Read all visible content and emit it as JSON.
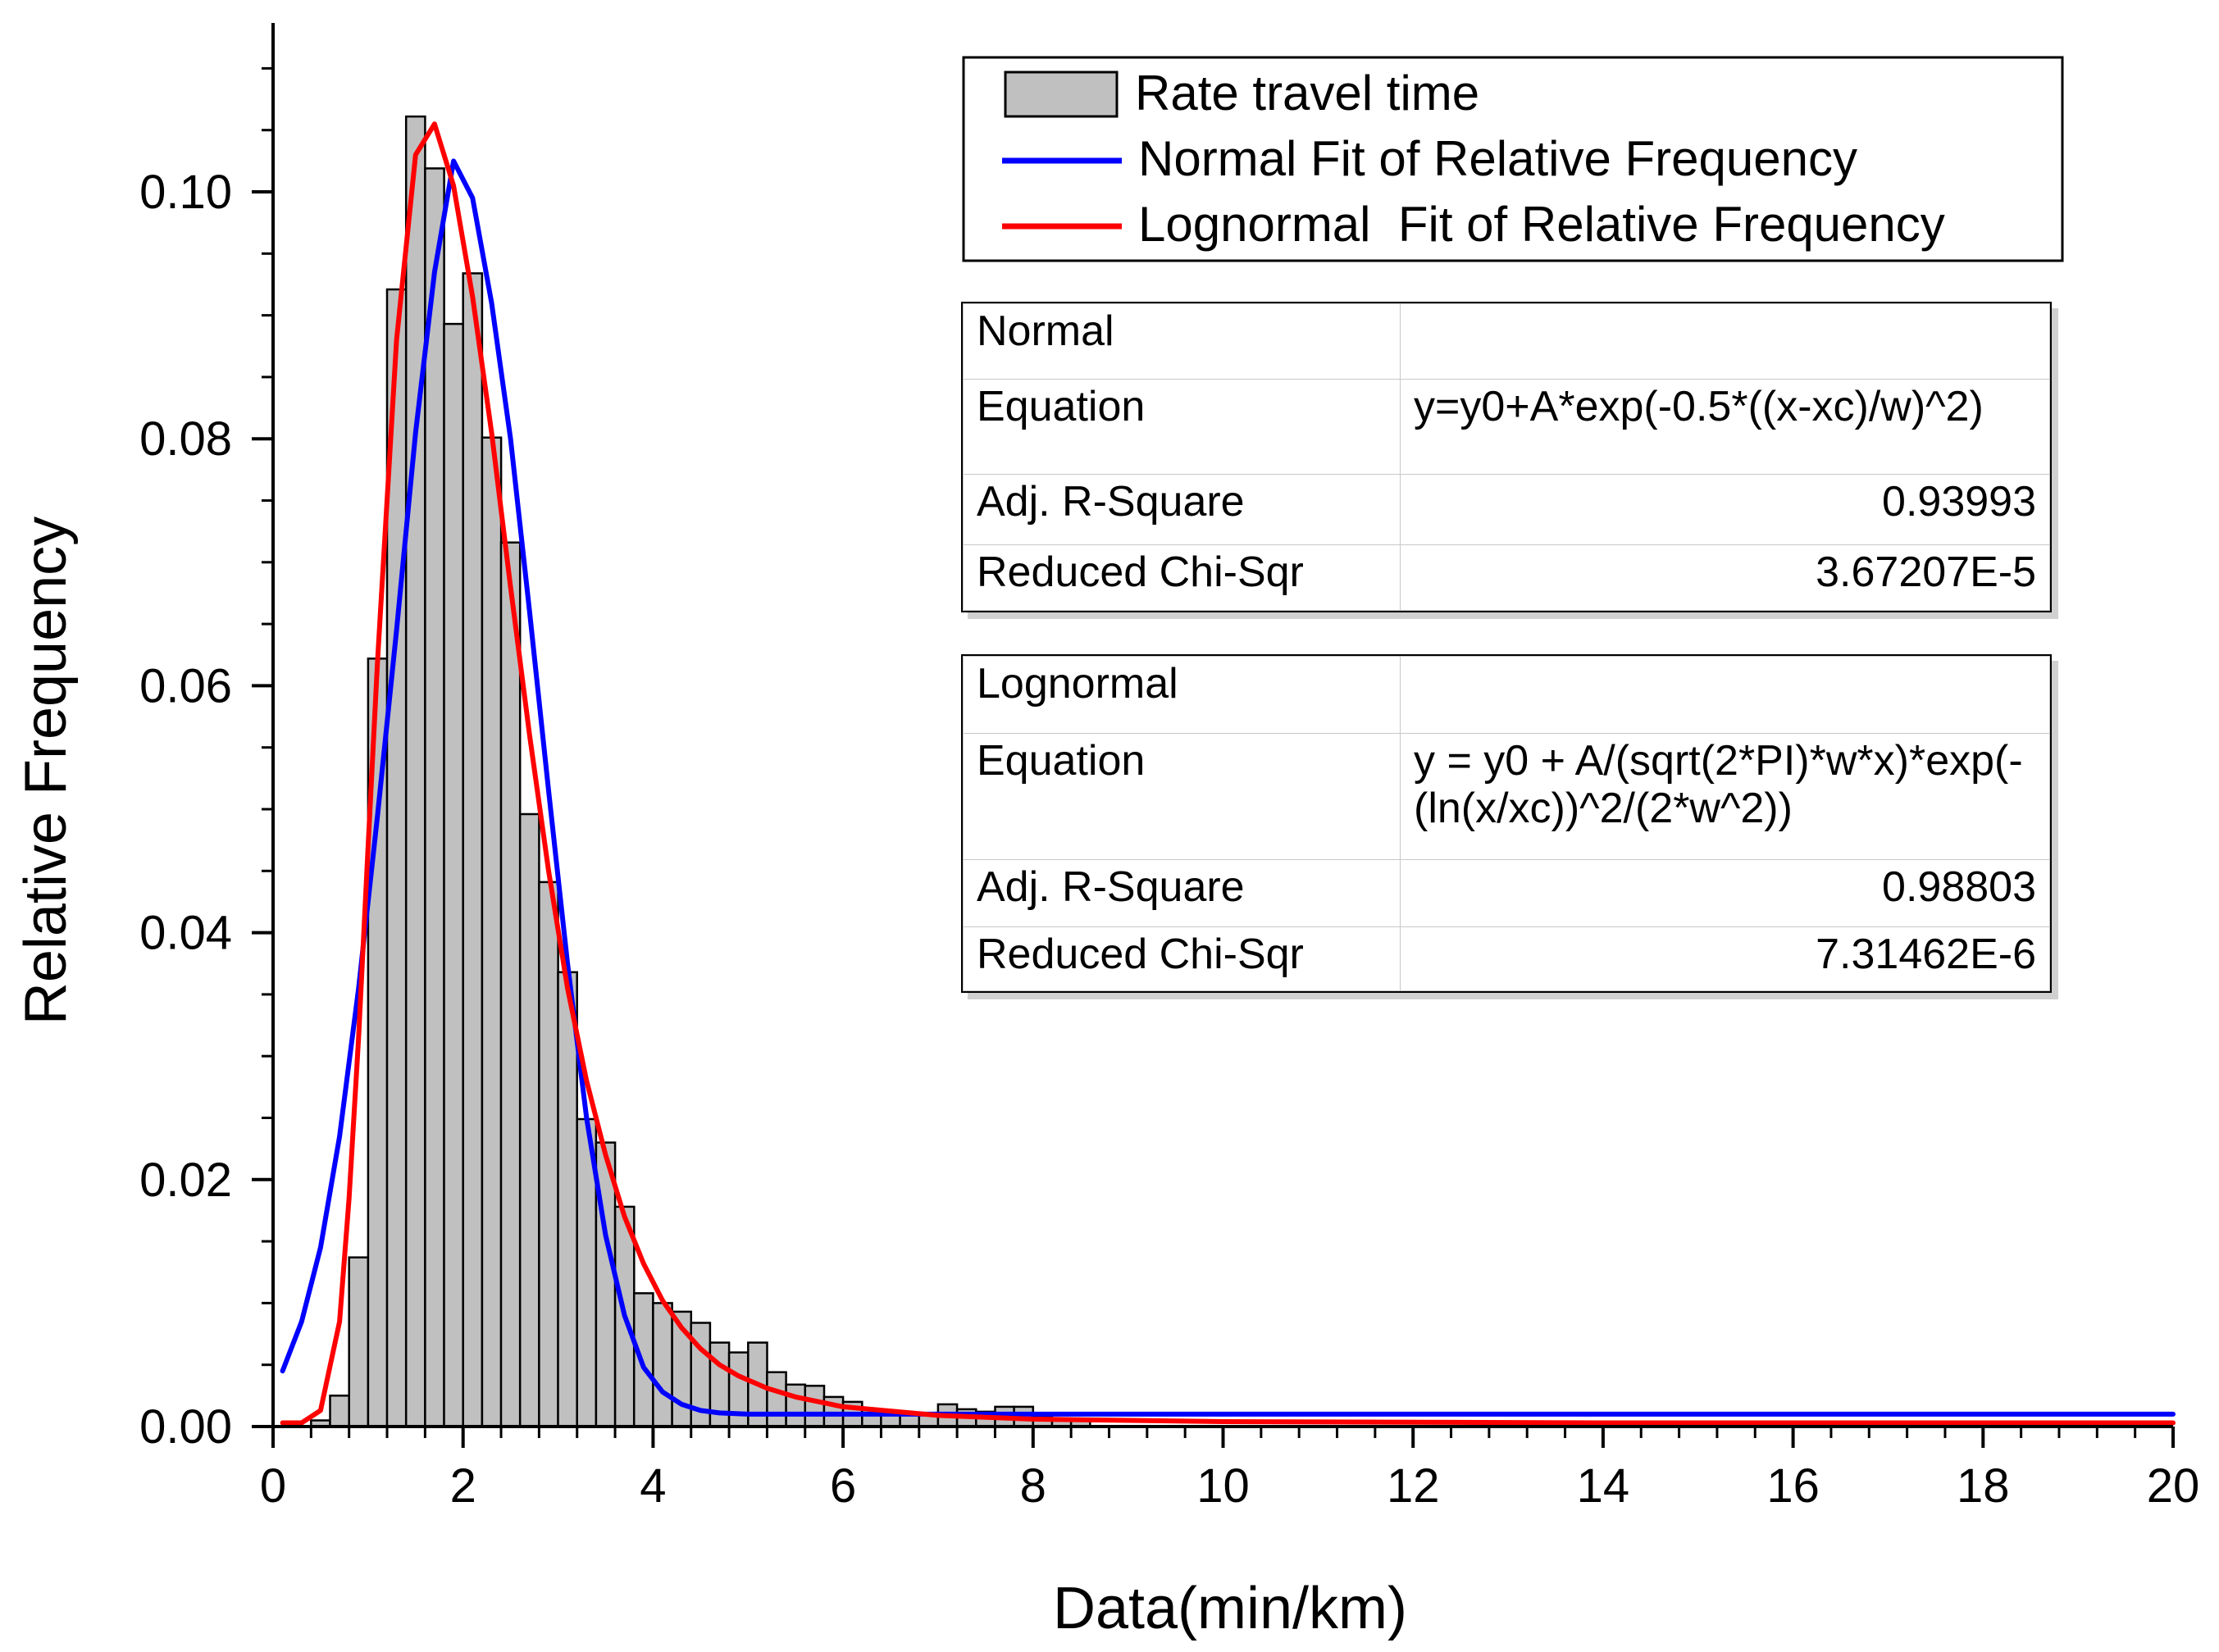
{
  "chart_data": {
    "type": "bar",
    "xlabel": "Data(min/km)",
    "ylabel": "Relative Frequency",
    "xlim": [
      0,
      20
    ],
    "ylim": [
      0,
      0.112
    ],
    "x_ticks": [
      0,
      2,
      4,
      6,
      8,
      10,
      12,
      14,
      16,
      18,
      20
    ],
    "x_tick_labels": [
      "0",
      "2",
      "4",
      "6",
      "8",
      "10",
      "12",
      "14",
      "16",
      "18",
      "20"
    ],
    "y_ticks": [
      0,
      0.02,
      0.04,
      0.06,
      0.08,
      0.1
    ],
    "y_tick_labels": [
      "0.00",
      "0.02",
      "0.04",
      "0.06",
      "0.08",
      "0.10"
    ],
    "bin_width": 0.2,
    "series": [
      {
        "name": "Rate travel time",
        "kind": "histogram",
        "color": "#c0c0c0",
        "x": [
          0.5,
          0.7,
          0.9,
          1.1,
          1.3,
          1.5,
          1.7,
          1.9,
          2.1,
          2.3,
          2.5,
          2.7,
          2.9,
          3.1,
          3.3,
          3.5,
          3.7,
          3.9,
          4.1,
          4.3,
          4.5,
          4.7,
          4.9,
          5.1,
          5.3,
          5.5,
          5.7,
          5.9,
          6.1,
          6.3,
          6.5,
          6.7,
          6.9,
          7.1,
          7.3,
          7.5,
          7.7,
          7.9,
          8.1,
          8.3,
          8.5
        ],
        "values": [
          0.0005,
          0.0025,
          0.0137,
          0.0622,
          0.0921,
          0.1061,
          0.1019,
          0.0893,
          0.0934,
          0.0801,
          0.0716,
          0.0496,
          0.0441,
          0.0368,
          0.0249,
          0.023,
          0.0178,
          0.0108,
          0.01,
          0.0093,
          0.0084,
          0.0068,
          0.006,
          0.0068,
          0.0044,
          0.0034,
          0.0033,
          0.0024,
          0.002,
          0.0014,
          0.0012,
          0.0011,
          0.001,
          0.0018,
          0.0014,
          0.0012,
          0.0016,
          0.0016,
          0.0008,
          0.0006,
          0.0005
        ]
      },
      {
        "name": "Normal Fit of Relative Frequency",
        "kind": "line",
        "color": "#0000ff",
        "x": [
          0.1,
          0.3,
          0.5,
          0.7,
          0.9,
          1.1,
          1.3,
          1.5,
          1.7,
          1.9,
          2.1,
          2.3,
          2.5,
          2.7,
          2.9,
          3.1,
          3.3,
          3.5,
          3.7,
          3.9,
          4.1,
          4.3,
          4.5,
          4.7,
          5.0,
          6.0,
          8.0,
          10.0,
          14.0,
          20.0
        ],
        "values": [
          0.0045,
          0.0085,
          0.0145,
          0.0235,
          0.0355,
          0.0495,
          0.0645,
          0.0805,
          0.0935,
          0.1025,
          0.0995,
          0.091,
          0.08,
          0.066,
          0.0515,
          0.0375,
          0.025,
          0.0155,
          0.009,
          0.0048,
          0.0028,
          0.0018,
          0.0013,
          0.0011,
          0.001,
          0.001,
          0.001,
          0.001,
          0.001,
          0.001
        ]
      },
      {
        "name": "Lognormal  Fit of Relative Frequency",
        "kind": "line",
        "color": "#ff0000",
        "x": [
          0.1,
          0.3,
          0.5,
          0.7,
          0.8,
          0.9,
          1.0,
          1.1,
          1.3,
          1.5,
          1.7,
          1.9,
          2.1,
          2.3,
          2.5,
          2.7,
          2.9,
          3.1,
          3.3,
          3.5,
          3.7,
          3.9,
          4.1,
          4.3,
          4.5,
          4.7,
          4.9,
          5.2,
          5.5,
          6.0,
          7.0,
          8.0,
          10.0,
          14.0,
          20.0
        ],
        "values": [
          0.0003,
          0.0003,
          0.0013,
          0.0085,
          0.0185,
          0.0315,
          0.047,
          0.062,
          0.088,
          0.103,
          0.1055,
          0.1005,
          0.0915,
          0.0805,
          0.068,
          0.056,
          0.045,
          0.0355,
          0.028,
          0.022,
          0.017,
          0.0132,
          0.0102,
          0.008,
          0.0063,
          0.005,
          0.0041,
          0.0031,
          0.0024,
          0.0016,
          0.0009,
          0.0006,
          0.0004,
          0.0003,
          0.0003
        ]
      }
    ]
  },
  "stats": {
    "normal": {
      "title": "Normal",
      "equation_label": "Equation",
      "equation": "y=y0+A*exp(-0.5*((x-xc)/w)^2)",
      "adj_r_label": "Adj. R-Square",
      "adj_r": "0.93993",
      "chi_label": "Reduced Chi-Sqr",
      "chi": "3.67207E-5"
    },
    "lognormal": {
      "title": "Lognormal",
      "equation_label": "Equation",
      "equation": "y = y0 + A/(sqrt(2*PI)*w*x)*exp(-(ln(x/xc))^2/(2*w^2))",
      "adj_r_label": "Adj. R-Square",
      "adj_r": "0.98803",
      "chi_label": "Reduced Chi-Sqr",
      "chi": "7.31462E-6"
    }
  }
}
